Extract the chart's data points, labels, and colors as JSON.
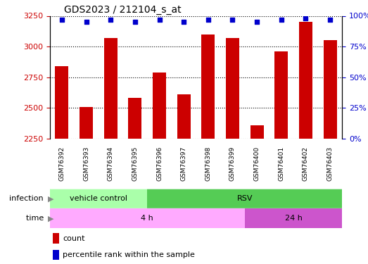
{
  "title": "GDS2023 / 212104_s_at",
  "samples": [
    "GSM76392",
    "GSM76393",
    "GSM76394",
    "GSM76395",
    "GSM76396",
    "GSM76397",
    "GSM76398",
    "GSM76399",
    "GSM76400",
    "GSM76401",
    "GSM76402",
    "GSM76403"
  ],
  "counts": [
    2840,
    2510,
    3070,
    2580,
    2790,
    2610,
    3100,
    3070,
    2360,
    2960,
    3200,
    3050
  ],
  "percentile_ranks": [
    97,
    95,
    97,
    95,
    97,
    95,
    97,
    97,
    95,
    97,
    98,
    97
  ],
  "ylim_left": [
    2250,
    3250
  ],
  "ylim_right": [
    0,
    100
  ],
  "yticks_left": [
    2250,
    2500,
    2750,
    3000,
    3250
  ],
  "yticks_right": [
    0,
    25,
    50,
    75,
    100
  ],
  "bar_color": "#cc0000",
  "dot_color": "#0000cc",
  "bar_bottom": 2250,
  "infection_labels": [
    {
      "label": "vehicle control",
      "start": 0,
      "end": 4,
      "color": "#aaffaa"
    },
    {
      "label": "RSV",
      "start": 4,
      "end": 12,
      "color": "#55cc55"
    }
  ],
  "time_labels": [
    {
      "label": "4 h",
      "start": 0,
      "end": 8,
      "color": "#ffaaff"
    },
    {
      "label": "24 h",
      "start": 8,
      "end": 12,
      "color": "#cc55cc"
    }
  ],
  "infection_row_label": "infection",
  "time_row_label": "time",
  "legend_count_label": "count",
  "legend_pct_label": "percentile rank within the sample",
  "bg_color": "#ffffff",
  "plot_bg": "#ffffff",
  "xticklabel_bg": "#cccccc",
  "arrow_color": "#888888"
}
